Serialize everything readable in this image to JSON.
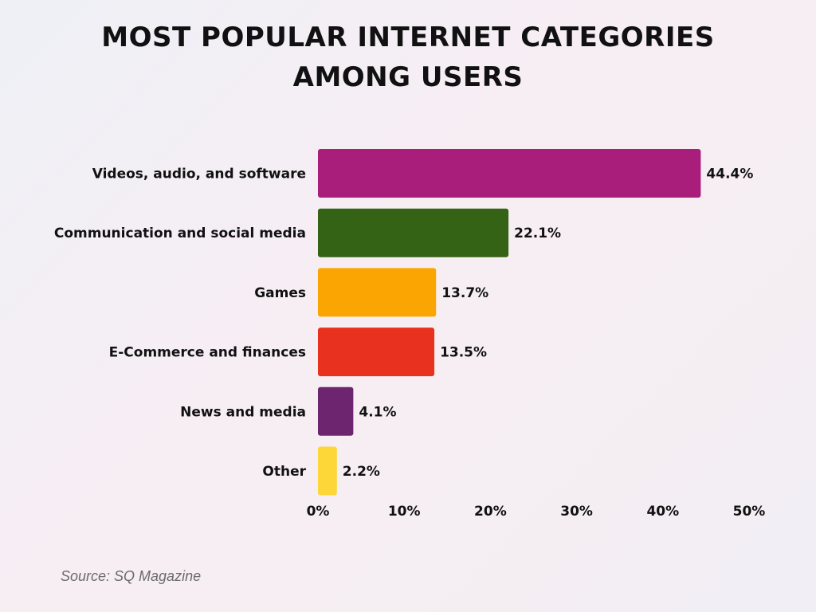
{
  "chart_data": {
    "type": "bar",
    "orientation": "horizontal",
    "title_lines": [
      "MOST POPULAR INTERNET CATEGORIES",
      "AMONG USERS"
    ],
    "categories": [
      "Videos, audio, and software",
      "Communication and social media",
      "Games",
      "E-Commerce and finances",
      "News and media",
      "Other"
    ],
    "values": [
      44.4,
      22.1,
      13.7,
      13.5,
      4.1,
      2.2
    ],
    "data_labels": [
      "44.4%",
      "22.1%",
      "13.7%",
      "13.5%",
      "4.1%",
      "2.2%"
    ],
    "colors": [
      "#AA1E7B",
      "#346315",
      "#FBA503",
      "#E8321F",
      "#6D2570",
      "#FDD737"
    ],
    "xlim": [
      0,
      50
    ],
    "x_ticks": [
      "0%",
      "10%",
      "20%",
      "30%",
      "40%",
      "50%"
    ],
    "x_tick_values": [
      0,
      10,
      20,
      30,
      40,
      50
    ],
    "xlabel": "",
    "ylabel": "",
    "grid": false,
    "legend": "none"
  },
  "source": "Source: SQ Magazine"
}
